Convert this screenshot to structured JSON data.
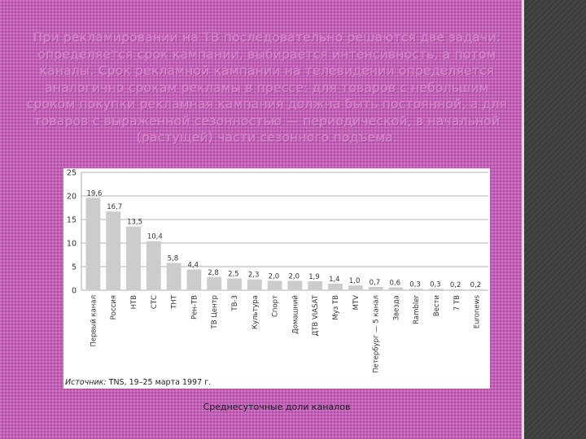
{
  "slide": {
    "paragraph": "При рекламировании на ТВ последовательно решаются две задачи: определяется срок кампании, выбирается интенсивность, а потом каналы. Срок рекламной кампании на телевидении определяется аналогично срокам рекламы в прессе: для товаров с небольшим сроком покупки рекламная кампания должна быть постоянной, а для товаров с выраженной сезонностью — периодической, в начальной (растущей) части сезонного подъема.",
    "caption": "Среднесуточные доли каналов",
    "source_prefix": "Источник:",
    "source_text": " TNS, 19–25 марта 1997 г."
  },
  "chart_data": {
    "type": "bar",
    "categories": [
      "Первый канал",
      "Россия",
      "НТВ",
      "СТС",
      "ТНТ",
      "Рен-ТВ",
      "ТВ Центр",
      "ТВ-3",
      "Культура",
      "Спорт",
      "Домашний",
      "ДТВ VIASAT",
      "Муз ТВ",
      "MTV",
      "Петербург — 5 канал",
      "Звезда",
      "Rambler",
      "Вести",
      "7 ТВ",
      "Euronews"
    ],
    "values": [
      19.6,
      16.7,
      13.5,
      10.4,
      5.8,
      4.4,
      2.8,
      2.5,
      2.3,
      2.0,
      2.0,
      1.9,
      1.4,
      1.0,
      0.7,
      0.6,
      0.3,
      0.3,
      0.2,
      0.2
    ],
    "value_labels": [
      "19,6",
      "16,7",
      "13,5",
      "10,4",
      "5,8",
      "4,4",
      "2,8",
      "2,5",
      "2,3",
      "2,0",
      "2,0",
      "1,9",
      "1,4",
      "1,0",
      "0,7",
      "0,6",
      "0,3",
      "0,3",
      "0,2",
      "0,2"
    ],
    "yticks": [
      0,
      5,
      10,
      15,
      20,
      25
    ],
    "ylim": [
      0,
      25
    ],
    "grid": true,
    "bar_color": "#cccccc",
    "grid_color": "#9a9a9a"
  }
}
